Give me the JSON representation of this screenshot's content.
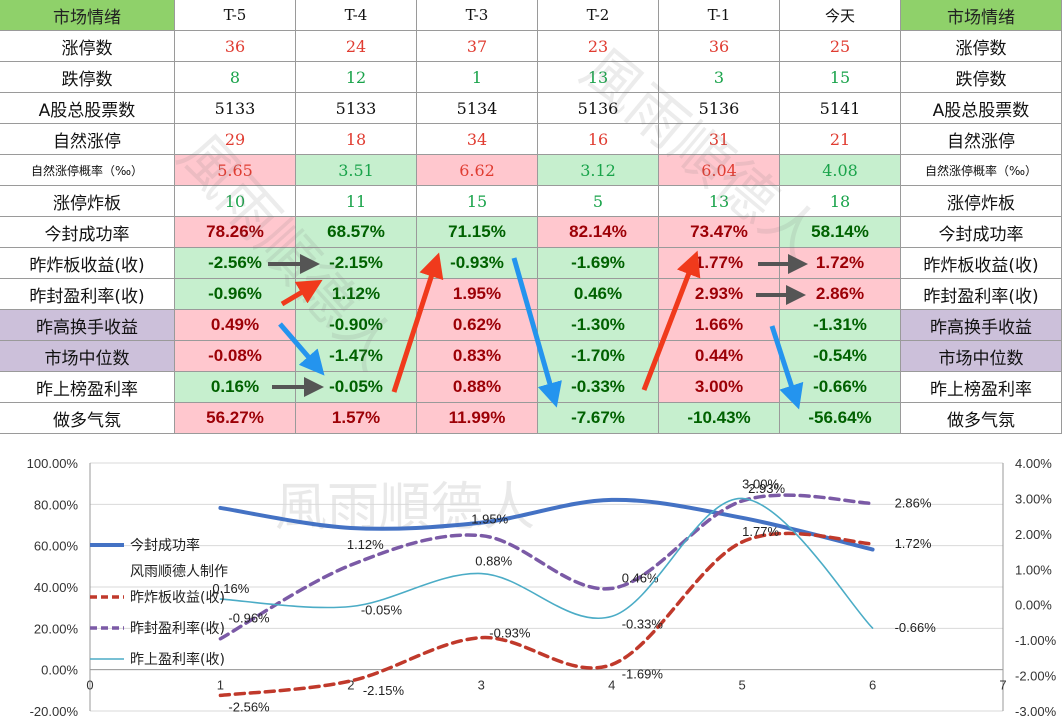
{
  "table": {
    "header": {
      "left": "市场情绪",
      "cols": [
        "T-5",
        "T-4",
        "T-3",
        "T-2",
        "T-1",
        "今天"
      ],
      "right": "市场情绪"
    },
    "rows": [
      {
        "label": "涨停数",
        "values": [
          "36",
          "24",
          "37",
          "23",
          "36",
          "25"
        ],
        "colors": [
          "red",
          "red",
          "red",
          "red",
          "red",
          "red"
        ],
        "bg": [
          "",
          "",
          "",
          "",
          "",
          ""
        ],
        "style": "val",
        "label_bg": ""
      },
      {
        "label": "跌停数",
        "values": [
          "8",
          "12",
          "1",
          "13",
          "3",
          "15"
        ],
        "colors": [
          "green",
          "green",
          "green",
          "green",
          "green",
          "green"
        ],
        "bg": [
          "",
          "",
          "",
          "",
          "",
          ""
        ],
        "style": "val",
        "label_bg": ""
      },
      {
        "label": "A股总股票数",
        "values": [
          "5133",
          "5133",
          "5134",
          "5136",
          "5136",
          "5141"
        ],
        "colors": [
          "dark",
          "dark",
          "dark",
          "dark",
          "dark",
          "dark"
        ],
        "bg": [
          "",
          "",
          "",
          "",
          "",
          ""
        ],
        "style": "val",
        "label_bg": ""
      },
      {
        "label": "自然涨停",
        "values": [
          "29",
          "18",
          "34",
          "16",
          "31",
          "21"
        ],
        "colors": [
          "red",
          "red",
          "red",
          "red",
          "red",
          "red"
        ],
        "bg": [
          "",
          "",
          "",
          "",
          "",
          ""
        ],
        "style": "val",
        "label_bg": ""
      },
      {
        "label": "自然涨停概率（‰）",
        "values": [
          "5.65",
          "3.51",
          "6.62",
          "3.12",
          "6.04",
          "4.08"
        ],
        "colors": [
          "red",
          "green",
          "red",
          "green",
          "red",
          "green"
        ],
        "bg": [
          "red",
          "green",
          "red",
          "green",
          "red",
          "green"
        ],
        "style": "val",
        "label_bg": "",
        "small": true
      },
      {
        "label": "涨停炸板",
        "values": [
          "10",
          "11",
          "15",
          "5",
          "13",
          "18"
        ],
        "colors": [
          "green",
          "green",
          "green",
          "green",
          "green",
          "green"
        ],
        "bg": [
          "",
          "",
          "",
          "",
          "",
          ""
        ],
        "style": "val",
        "label_bg": ""
      },
      {
        "label": "今封成功率",
        "values": [
          "78.26%",
          "68.57%",
          "71.15%",
          "82.14%",
          "73.47%",
          "58.14%"
        ],
        "colors": [
          "dred",
          "dgreen",
          "dgreen",
          "dred",
          "dred",
          "dgreen"
        ],
        "bg": [
          "red",
          "green",
          "green",
          "red",
          "red",
          "green"
        ],
        "style": "pct",
        "label_bg": ""
      },
      {
        "label": "昨炸板收益(收)",
        "values": [
          "-2.56%",
          "-2.15%",
          "-0.93%",
          "-1.69%",
          "1.77%",
          "1.72%"
        ],
        "colors": [
          "dgreen",
          "dgreen",
          "dgreen",
          "dgreen",
          "dred",
          "dred"
        ],
        "bg": [
          "green",
          "green",
          "green",
          "green",
          "red",
          "red"
        ],
        "style": "bold",
        "label_bg": ""
      },
      {
        "label": "昨封盈利率(收)",
        "values": [
          "-0.96%",
          "1.12%",
          "1.95%",
          "0.46%",
          "2.93%",
          "2.86%"
        ],
        "colors": [
          "dgreen",
          "dgreen",
          "dred",
          "dgreen",
          "dred",
          "dred"
        ],
        "bg": [
          "green",
          "green",
          "red",
          "green",
          "red",
          "red"
        ],
        "style": "bold",
        "label_bg": ""
      },
      {
        "label": "昨高换手收益",
        "values": [
          "0.49%",
          "-0.90%",
          "0.62%",
          "-1.30%",
          "1.66%",
          "-1.31%"
        ],
        "colors": [
          "dred",
          "dgreen",
          "dred",
          "dgreen",
          "dred",
          "dgreen"
        ],
        "bg": [
          "red",
          "green",
          "red",
          "green",
          "red",
          "green"
        ],
        "style": "bold",
        "label_bg": "purple"
      },
      {
        "label": "市场中位数",
        "values": [
          "-0.08%",
          "-1.47%",
          "0.83%",
          "-1.70%",
          "0.44%",
          "-0.54%"
        ],
        "colors": [
          "dred",
          "dgreen",
          "dred",
          "dgreen",
          "dred",
          "dgreen"
        ],
        "bg": [
          "red",
          "green",
          "red",
          "green",
          "red",
          "green"
        ],
        "style": "bold",
        "label_bg": "purple"
      },
      {
        "label": "昨上榜盈利率",
        "values": [
          "0.16%",
          "-0.05%",
          "0.88%",
          "-0.33%",
          "3.00%",
          "-0.66%"
        ],
        "colors": [
          "dgreen",
          "dgreen",
          "dred",
          "dgreen",
          "dred",
          "dgreen"
        ],
        "bg": [
          "green",
          "green",
          "red",
          "green",
          "red",
          "green"
        ],
        "style": "bold",
        "label_bg": ""
      },
      {
        "label": "做多气氛",
        "values": [
          "56.27%",
          "1.57%",
          "11.99%",
          "-7.67%",
          "-10.43%",
          "-56.64%"
        ],
        "colors": [
          "dred",
          "dred",
          "dred",
          "dgreen",
          "dgreen",
          "dgreen"
        ],
        "bg": [
          "red",
          "red",
          "red",
          "green",
          "green",
          "green"
        ],
        "style": "bold",
        "label_bg": ""
      }
    ]
  },
  "watermark": "風雨順德人",
  "colors": {
    "red": "#e03c31",
    "green": "#19a34a",
    "dark": "#111111",
    "dred": "#9c0006",
    "dgreen": "#006100",
    "arrow_red": "#f03a1c",
    "arrow_blue": "#2494ee",
    "arrow_gray": "#555555",
    "line_success": "#4472c4",
    "line_fail": "#c0392b",
    "line_seal": "#7b5aa6",
    "line_board": "#4bacc6"
  },
  "chart_data": {
    "type": "line",
    "x": [
      1,
      2,
      3,
      4,
      5,
      6
    ],
    "xlim": [
      0,
      7
    ],
    "x_ticks": [
      "0",
      "1",
      "2",
      "3",
      "4",
      "5",
      "6",
      "7"
    ],
    "y_left": {
      "lim": [
        -20,
        100
      ],
      "ticks": [
        "-20.00%",
        "0.00%",
        "20.00%",
        "40.00%",
        "60.00%",
        "80.00%",
        "100.00%"
      ]
    },
    "y_right": {
      "lim": [
        -3,
        4
      ],
      "ticks": [
        "-3.00%",
        "-2.00%",
        "-1.00%",
        "0.00%",
        "1.00%",
        "2.00%",
        "3.00%",
        "4.00%"
      ]
    },
    "series": [
      {
        "name": "今封成功率",
        "axis": "left",
        "values": [
          78.26,
          68.57,
          71.15,
          82.14,
          73.47,
          58.14
        ],
        "style": "solid-thick",
        "labels": [
          "",
          "",
          "",
          "",
          "",
          ""
        ]
      },
      {
        "name": "昨炸板收益(收)",
        "axis": "right",
        "values": [
          -2.56,
          -2.15,
          -0.93,
          -1.69,
          1.77,
          1.72
        ],
        "style": "dashed",
        "labels": [
          "-2.56%",
          "-2.15%",
          "-0.93%",
          "-1.69%",
          "1.77%",
          "1.72%"
        ]
      },
      {
        "name": "昨封盈利率(收)",
        "axis": "right",
        "values": [
          -0.96,
          1.12,
          1.95,
          0.46,
          2.93,
          2.86
        ],
        "style": "dashed",
        "labels": [
          "-0.96%",
          "1.12%",
          "1.95%",
          "0.46%",
          "2.93%",
          "2.86%"
        ]
      },
      {
        "name": "昨上盈利率(收)",
        "axis": "right",
        "values": [
          0.16,
          -0.05,
          0.88,
          -0.33,
          3.0,
          -0.66
        ],
        "style": "thin",
        "labels": [
          "0.16%",
          "-0.05%",
          "0.88%",
          "-0.33%",
          "3.00%",
          "-0.66%"
        ]
      }
    ],
    "legend": {
      "placement": "left",
      "extra_text": "风雨顺德人制作"
    }
  }
}
